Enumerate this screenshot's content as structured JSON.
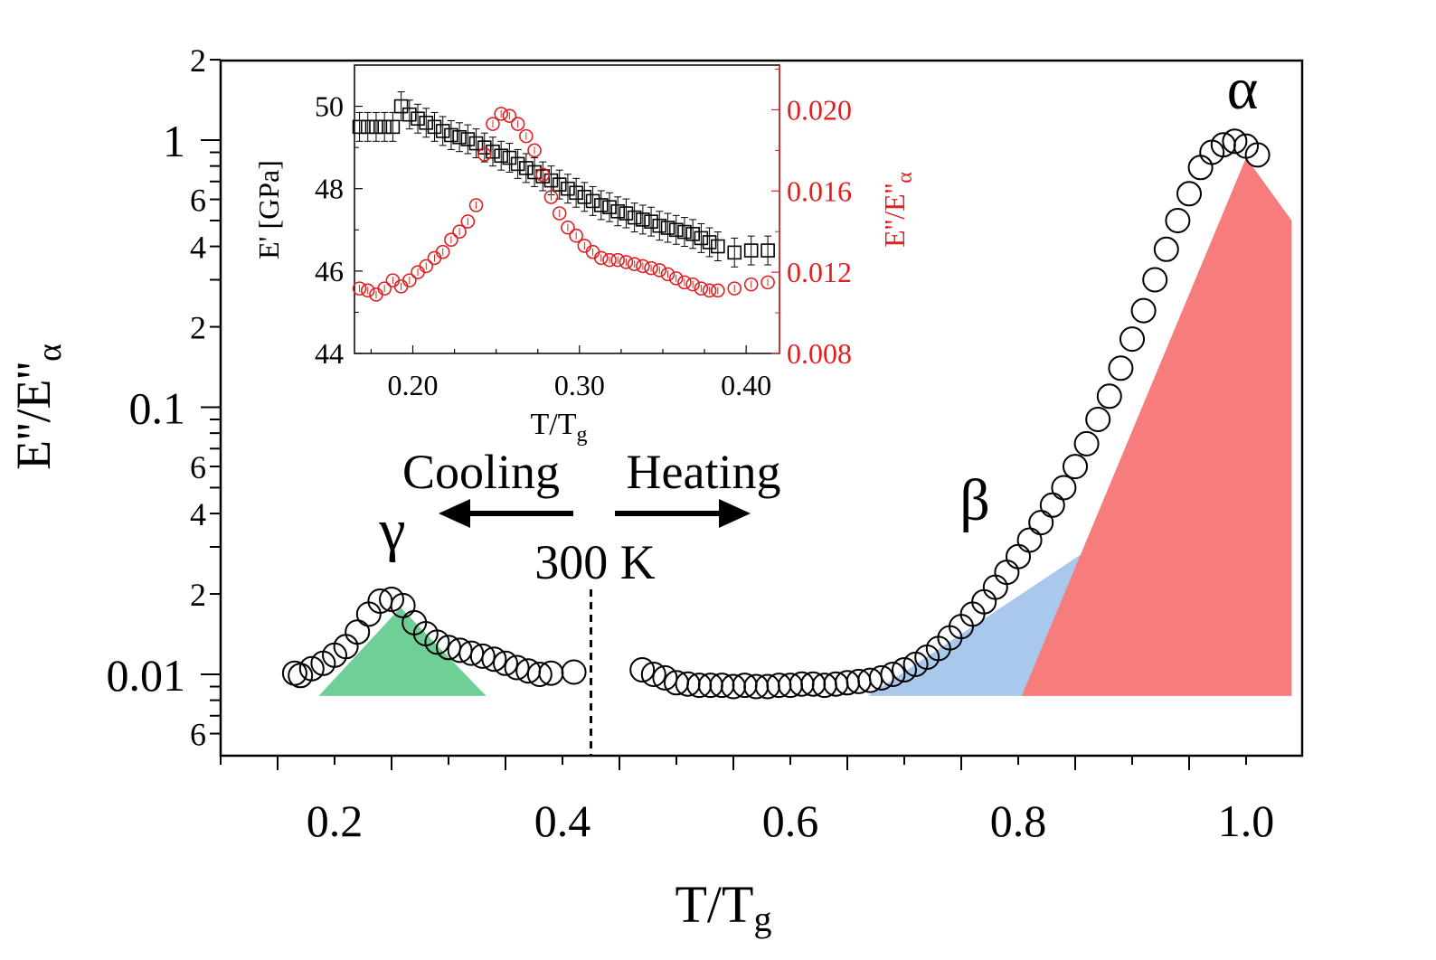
{
  "chart_data": [
    {
      "type": "scatter",
      "xlabel": "T/Tg",
      "ylabel": "E''/E''α",
      "yscale": "log",
      "xlim": [
        0.1,
        1.05
      ],
      "ylim": [
        0.005,
        2
      ],
      "x_ticks": [
        "0.2",
        "0.4",
        "0.6",
        "0.8",
        "1.0"
      ],
      "y_major_ticks": [
        "0.01",
        "0.1",
        "1"
      ],
      "y_minor_labels": [
        "6",
        "2",
        "4",
        "6",
        "2",
        "4",
        "6",
        "2"
      ],
      "grid": false,
      "series": [
        {
          "marker": "open-circle",
          "color": "#000000",
          "x": [
            0.165,
            0.17,
            0.18,
            0.19,
            0.2,
            0.21,
            0.22,
            0.23,
            0.24,
            0.25,
            0.26,
            0.27,
            0.28,
            0.29,
            0.3,
            0.31,
            0.32,
            0.33,
            0.34,
            0.35,
            0.36,
            0.37,
            0.38,
            0.39,
            0.41,
            0.47,
            0.48,
            0.49,
            0.5,
            0.51,
            0.52,
            0.53,
            0.54,
            0.55,
            0.56,
            0.57,
            0.58,
            0.59,
            0.6,
            0.61,
            0.62,
            0.63,
            0.64,
            0.65,
            0.66,
            0.67,
            0.68,
            0.69,
            0.7,
            0.71,
            0.72,
            0.73,
            0.74,
            0.75,
            0.76,
            0.77,
            0.78,
            0.79,
            0.8,
            0.81,
            0.82,
            0.83,
            0.84,
            0.85,
            0.86,
            0.87,
            0.88,
            0.89,
            0.9,
            0.91,
            0.92,
            0.93,
            0.94,
            0.95,
            0.96,
            0.97,
            0.98,
            0.99,
            1.0,
            1.01
          ],
          "y": [
            0.0101,
            0.0099,
            0.0105,
            0.011,
            0.0118,
            0.0127,
            0.0144,
            0.0168,
            0.0188,
            0.0191,
            0.0181,
            0.0156,
            0.0142,
            0.0132,
            0.0126,
            0.0123,
            0.012,
            0.0117,
            0.0114,
            0.011,
            0.0106,
            0.0103,
            0.01,
            0.0101,
            0.0102,
            0.0104,
            0.01,
            0.0097,
            0.0093,
            0.0092,
            0.0091,
            0.0091,
            0.0091,
            0.009,
            0.0091,
            0.009,
            0.009,
            0.0091,
            0.0091,
            0.0092,
            0.0092,
            0.0091,
            0.0092,
            0.0093,
            0.0094,
            0.0095,
            0.0097,
            0.01,
            0.0104,
            0.0109,
            0.0116,
            0.0125,
            0.0137,
            0.0151,
            0.0168,
            0.0187,
            0.0212,
            0.0241,
            0.0276,
            0.0318,
            0.037,
            0.043,
            0.05,
            0.06,
            0.073,
            0.09,
            0.11,
            0.14,
            0.18,
            0.23,
            0.3,
            0.39,
            0.5,
            0.63,
            0.79,
            0.9,
            0.96,
            0.99,
            0.95,
            0.88
          ]
        }
      ],
      "shaded_peaks": [
        {
          "label": "γ",
          "color": "#6fcf97",
          "x": [
            0.186,
            0.258,
            0.333
          ],
          "y": [
            0.0083,
            0.0178,
            0.0083
          ]
        },
        {
          "label": "β",
          "color": "#a9c8ec",
          "x": [
            0.668,
            0.87,
            0.81
          ],
          "y": [
            0.0083,
            0.031,
            0.0083
          ]
        },
        {
          "label": "α",
          "color": "#f77c7c",
          "x": [
            0.803,
            1.0,
            1.04,
            1.04
          ],
          "y": [
            0.0083,
            0.86,
            0.5,
            0.0083
          ]
        }
      ],
      "annotations": {
        "alpha": "α",
        "beta": "β",
        "gamma": "γ",
        "cooling": "Cooling",
        "heating": "Heating",
        "temperature": "300 K",
        "divider_x": 0.425
      }
    },
    {
      "type": "scatter",
      "inset": true,
      "xlabel": "T/Tg",
      "ylabel_left": "E' [GPa]",
      "ylabel_right": "E''/E''α",
      "xlim": [
        0.165,
        0.42
      ],
      "ylim_left": [
        44,
        51
      ],
      "ylim_right": [
        0.008,
        0.0222
      ],
      "x_ticks": [
        "0.20",
        "0.30",
        "0.40"
      ],
      "y_left_ticks": [
        "44",
        "46",
        "48",
        "50"
      ],
      "y_right_ticks": [
        "0.008",
        "0.012",
        "0.016",
        "0.020"
      ],
      "series": [
        {
          "marker": "open-square",
          "color": "#000000",
          "axis": "left",
          "error_bar": 0.35,
          "x": [
            0.168,
            0.173,
            0.178,
            0.183,
            0.188,
            0.193,
            0.198,
            0.203,
            0.208,
            0.213,
            0.218,
            0.223,
            0.228,
            0.233,
            0.238,
            0.243,
            0.248,
            0.253,
            0.258,
            0.263,
            0.268,
            0.273,
            0.278,
            0.283,
            0.288,
            0.293,
            0.298,
            0.303,
            0.308,
            0.313,
            0.318,
            0.323,
            0.328,
            0.333,
            0.338,
            0.343,
            0.348,
            0.353,
            0.358,
            0.363,
            0.368,
            0.373,
            0.378,
            0.383,
            0.393,
            0.403,
            0.413
          ],
          "y": [
            49.5,
            49.5,
            49.5,
            49.5,
            49.5,
            50.0,
            49.8,
            49.7,
            49.6,
            49.5,
            49.4,
            49.3,
            49.25,
            49.2,
            49.1,
            49.0,
            48.9,
            48.8,
            48.75,
            48.6,
            48.5,
            48.4,
            48.3,
            48.2,
            48.1,
            48.0,
            47.9,
            47.8,
            47.7,
            47.6,
            47.55,
            47.45,
            47.4,
            47.3,
            47.25,
            47.2,
            47.1,
            47.05,
            47.0,
            46.95,
            46.9,
            46.8,
            46.7,
            46.6,
            46.45,
            46.5,
            46.5
          ]
        },
        {
          "marker": "open-circle-errorbar",
          "color": "#e02020",
          "axis": "right",
          "x": [
            0.168,
            0.173,
            0.178,
            0.183,
            0.188,
            0.193,
            0.198,
            0.203,
            0.208,
            0.213,
            0.218,
            0.223,
            0.228,
            0.233,
            0.238,
            0.243,
            0.248,
            0.253,
            0.258,
            0.263,
            0.268,
            0.273,
            0.278,
            0.283,
            0.288,
            0.293,
            0.298,
            0.303,
            0.308,
            0.313,
            0.318,
            0.323,
            0.328,
            0.333,
            0.338,
            0.343,
            0.348,
            0.353,
            0.358,
            0.363,
            0.368,
            0.373,
            0.378,
            0.383,
            0.393,
            0.403,
            0.413
          ],
          "y": [
            0.0112,
            0.0111,
            0.0109,
            0.0112,
            0.0116,
            0.0113,
            0.0116,
            0.012,
            0.0123,
            0.0127,
            0.013,
            0.0136,
            0.014,
            0.0145,
            0.0153,
            0.0178,
            0.0193,
            0.0198,
            0.0197,
            0.0193,
            0.0187,
            0.018,
            0.0168,
            0.0157,
            0.0149,
            0.0142,
            0.0138,
            0.0133,
            0.013,
            0.0127,
            0.0126,
            0.0126,
            0.0125,
            0.0124,
            0.0123,
            0.0122,
            0.0121,
            0.0119,
            0.0117,
            0.0115,
            0.0114,
            0.0112,
            0.0111,
            0.0111,
            0.0112,
            0.0114,
            0.0115
          ]
        }
      ]
    }
  ]
}
